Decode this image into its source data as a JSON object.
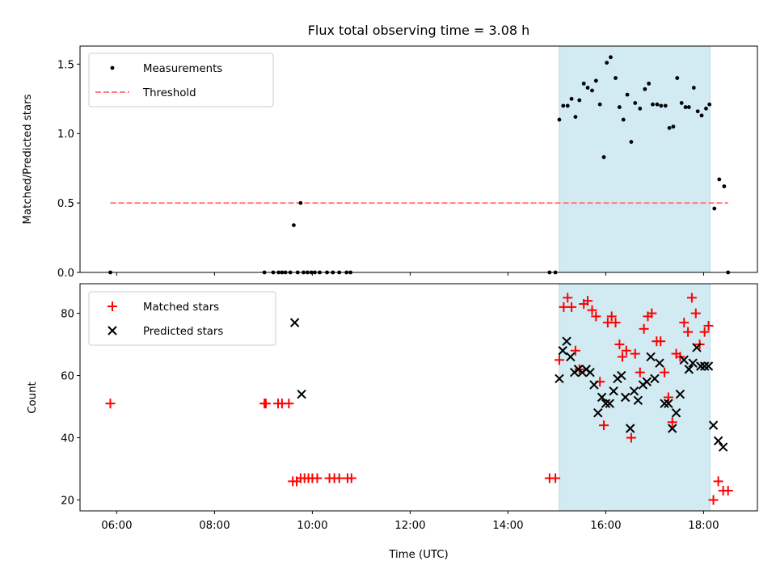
{
  "chart_data": {
    "title": "Flux total observing time = 3.08 h",
    "x_label": "Time (UTC)",
    "x_ticks": [
      "06:00",
      "08:00",
      "10:00",
      "12:00",
      "14:00",
      "16:00",
      "18:00"
    ],
    "x_range_hours": [
      5.25,
      19.1
    ],
    "shaded_interval_hours": [
      15.05,
      18.13
    ],
    "shade_color": "#add8e6",
    "panels": [
      {
        "type": "scatter",
        "y_label": "Matched/Predicted stars",
        "y_range": [
          0,
          1.63
        ],
        "y_ticks": [
          "0.0",
          "0.5",
          "1.0",
          "1.5"
        ],
        "legend_position": "upper left",
        "series": [
          {
            "name": "Measurements",
            "marker": "dot",
            "color": "#000000",
            "points": [
              [
                5.87,
                0
              ],
              [
                9.02,
                0
              ],
              [
                9.2,
                0
              ],
              [
                9.31,
                0
              ],
              [
                9.38,
                0
              ],
              [
                9.45,
                0
              ],
              [
                9.55,
                0
              ],
              [
                9.62,
                0.34
              ],
              [
                9.7,
                0
              ],
              [
                9.76,
                0.5
              ],
              [
                9.82,
                0
              ],
              [
                9.9,
                0
              ],
              [
                9.98,
                0
              ],
              [
                10.05,
                0
              ],
              [
                10.15,
                0
              ],
              [
                10.3,
                0
              ],
              [
                10.42,
                0
              ],
              [
                10.55,
                0
              ],
              [
                10.7,
                0
              ],
              [
                10.78,
                0
              ],
              [
                14.85,
                0
              ],
              [
                14.97,
                0
              ],
              [
                15.05,
                1.1
              ],
              [
                15.13,
                1.2
              ],
              [
                15.22,
                1.2
              ],
              [
                15.3,
                1.25
              ],
              [
                15.38,
                1.12
              ],
              [
                15.46,
                1.24
              ],
              [
                15.55,
                1.36
              ],
              [
                15.63,
                1.33
              ],
              [
                15.72,
                1.31
              ],
              [
                15.8,
                1.38
              ],
              [
                15.88,
                1.21
              ],
              [
                15.96,
                0.83
              ],
              [
                16.02,
                1.51
              ],
              [
                16.1,
                1.55
              ],
              [
                16.2,
                1.4
              ],
              [
                16.28,
                1.19
              ],
              [
                16.36,
                1.1
              ],
              [
                16.44,
                1.28
              ],
              [
                16.52,
                0.94
              ],
              [
                16.6,
                1.22
              ],
              [
                16.7,
                1.18
              ],
              [
                16.8,
                1.32
              ],
              [
                16.88,
                1.36
              ],
              [
                16.96,
                1.21
              ],
              [
                17.05,
                1.21
              ],
              [
                17.13,
                1.2
              ],
              [
                17.22,
                1.2
              ],
              [
                17.3,
                1.04
              ],
              [
                17.38,
                1.05
              ],
              [
                17.46,
                1.4
              ],
              [
                17.55,
                1.22
              ],
              [
                17.63,
                1.19
              ],
              [
                17.7,
                1.19
              ],
              [
                17.8,
                1.33
              ],
              [
                17.88,
                1.16
              ],
              [
                17.96,
                1.13
              ],
              [
                18.05,
                1.18
              ],
              [
                18.12,
                1.21
              ],
              [
                18.22,
                0.46
              ],
              [
                18.32,
                0.67
              ],
              [
                18.42,
                0.62
              ],
              [
                18.5,
                0
              ]
            ]
          },
          {
            "name": "Threshold",
            "marker": "dashed-line",
            "color": "#ff7f7f",
            "points": [
              [
                5.87,
                0.5
              ],
              [
                18.5,
                0.5
              ]
            ]
          }
        ]
      },
      {
        "type": "scatter",
        "y_label": "Count",
        "y_range": [
          16.5,
          89.5
        ],
        "y_ticks": [
          "20",
          "40",
          "60",
          "80"
        ],
        "legend_position": "upper left",
        "series": [
          {
            "name": "Matched stars",
            "marker": "plus",
            "color": "#ff0000",
            "points": [
              [
                5.87,
                51
              ],
              [
                9.02,
                51
              ],
              [
                9.05,
                51
              ],
              [
                9.3,
                51
              ],
              [
                9.38,
                51
              ],
              [
                9.52,
                51
              ],
              [
                9.6,
                26
              ],
              [
                9.68,
                26
              ],
              [
                9.76,
                27
              ],
              [
                9.84,
                27
              ],
              [
                9.92,
                27
              ],
              [
                10.0,
                27
              ],
              [
                10.1,
                27
              ],
              [
                10.35,
                27
              ],
              [
                10.45,
                27
              ],
              [
                10.55,
                27
              ],
              [
                10.72,
                27
              ],
              [
                10.8,
                27
              ],
              [
                14.85,
                27
              ],
              [
                14.97,
                27
              ],
              [
                15.05,
                65
              ],
              [
                15.14,
                82
              ],
              [
                15.22,
                85
              ],
              [
                15.3,
                82
              ],
              [
                15.38,
                68
              ],
              [
                15.46,
                62
              ],
              [
                15.55,
                83
              ],
              [
                15.63,
                84
              ],
              [
                15.72,
                81
              ],
              [
                15.8,
                79
              ],
              [
                15.88,
                58
              ],
              [
                15.96,
                44
              ],
              [
                16.04,
                77
              ],
              [
                16.12,
                79
              ],
              [
                16.2,
                77
              ],
              [
                16.28,
                70
              ],
              [
                16.34,
                66
              ],
              [
                16.42,
                68
              ],
              [
                16.52,
                40
              ],
              [
                16.6,
                67
              ],
              [
                16.7,
                61
              ],
              [
                16.78,
                75
              ],
              [
                16.86,
                79
              ],
              [
                16.94,
                80
              ],
              [
                17.04,
                71
              ],
              [
                17.12,
                71
              ],
              [
                17.2,
                61
              ],
              [
                17.28,
                53
              ],
              [
                17.36,
                45
              ],
              [
                17.44,
                67
              ],
              [
                17.52,
                66
              ],
              [
                17.6,
                77
              ],
              [
                17.68,
                74
              ],
              [
                17.76,
                85
              ],
              [
                17.84,
                80
              ],
              [
                17.92,
                70
              ],
              [
                18.02,
                74
              ],
              [
                18.1,
                76
              ],
              [
                18.2,
                20
              ],
              [
                18.3,
                26
              ],
              [
                18.4,
                23
              ],
              [
                18.5,
                23
              ]
            ]
          },
          {
            "name": "Predicted stars",
            "marker": "x",
            "color": "#000000",
            "points": [
              [
                9.64,
                77
              ],
              [
                9.78,
                54
              ],
              [
                15.05,
                59
              ],
              [
                15.12,
                68
              ],
              [
                15.2,
                71
              ],
              [
                15.28,
                66
              ],
              [
                15.36,
                61
              ],
              [
                15.44,
                62
              ],
              [
                15.52,
                61
              ],
              [
                15.6,
                62
              ],
              [
                15.68,
                61
              ],
              [
                15.76,
                57
              ],
              [
                15.84,
                48
              ],
              [
                15.92,
                53
              ],
              [
                16.0,
                51
              ],
              [
                16.08,
                51
              ],
              [
                16.16,
                55
              ],
              [
                16.24,
                59
              ],
              [
                16.32,
                60
              ],
              [
                16.4,
                53
              ],
              [
                16.5,
                43
              ],
              [
                16.58,
                55
              ],
              [
                16.66,
                52
              ],
              [
                16.76,
                57
              ],
              [
                16.84,
                58
              ],
              [
                16.92,
                66
              ],
              [
                17.0,
                59
              ],
              [
                17.1,
                64
              ],
              [
                17.2,
                51
              ],
              [
                17.28,
                51
              ],
              [
                17.36,
                43
              ],
              [
                17.44,
                48
              ],
              [
                17.52,
                54
              ],
              [
                17.6,
                65
              ],
              [
                17.7,
                62
              ],
              [
                17.78,
                64
              ],
              [
                17.86,
                69
              ],
              [
                17.94,
                63
              ],
              [
                18.02,
                63
              ],
              [
                18.1,
                63
              ],
              [
                18.2,
                44
              ],
              [
                18.3,
                39
              ],
              [
                18.4,
                37
              ]
            ]
          }
        ]
      }
    ]
  }
}
